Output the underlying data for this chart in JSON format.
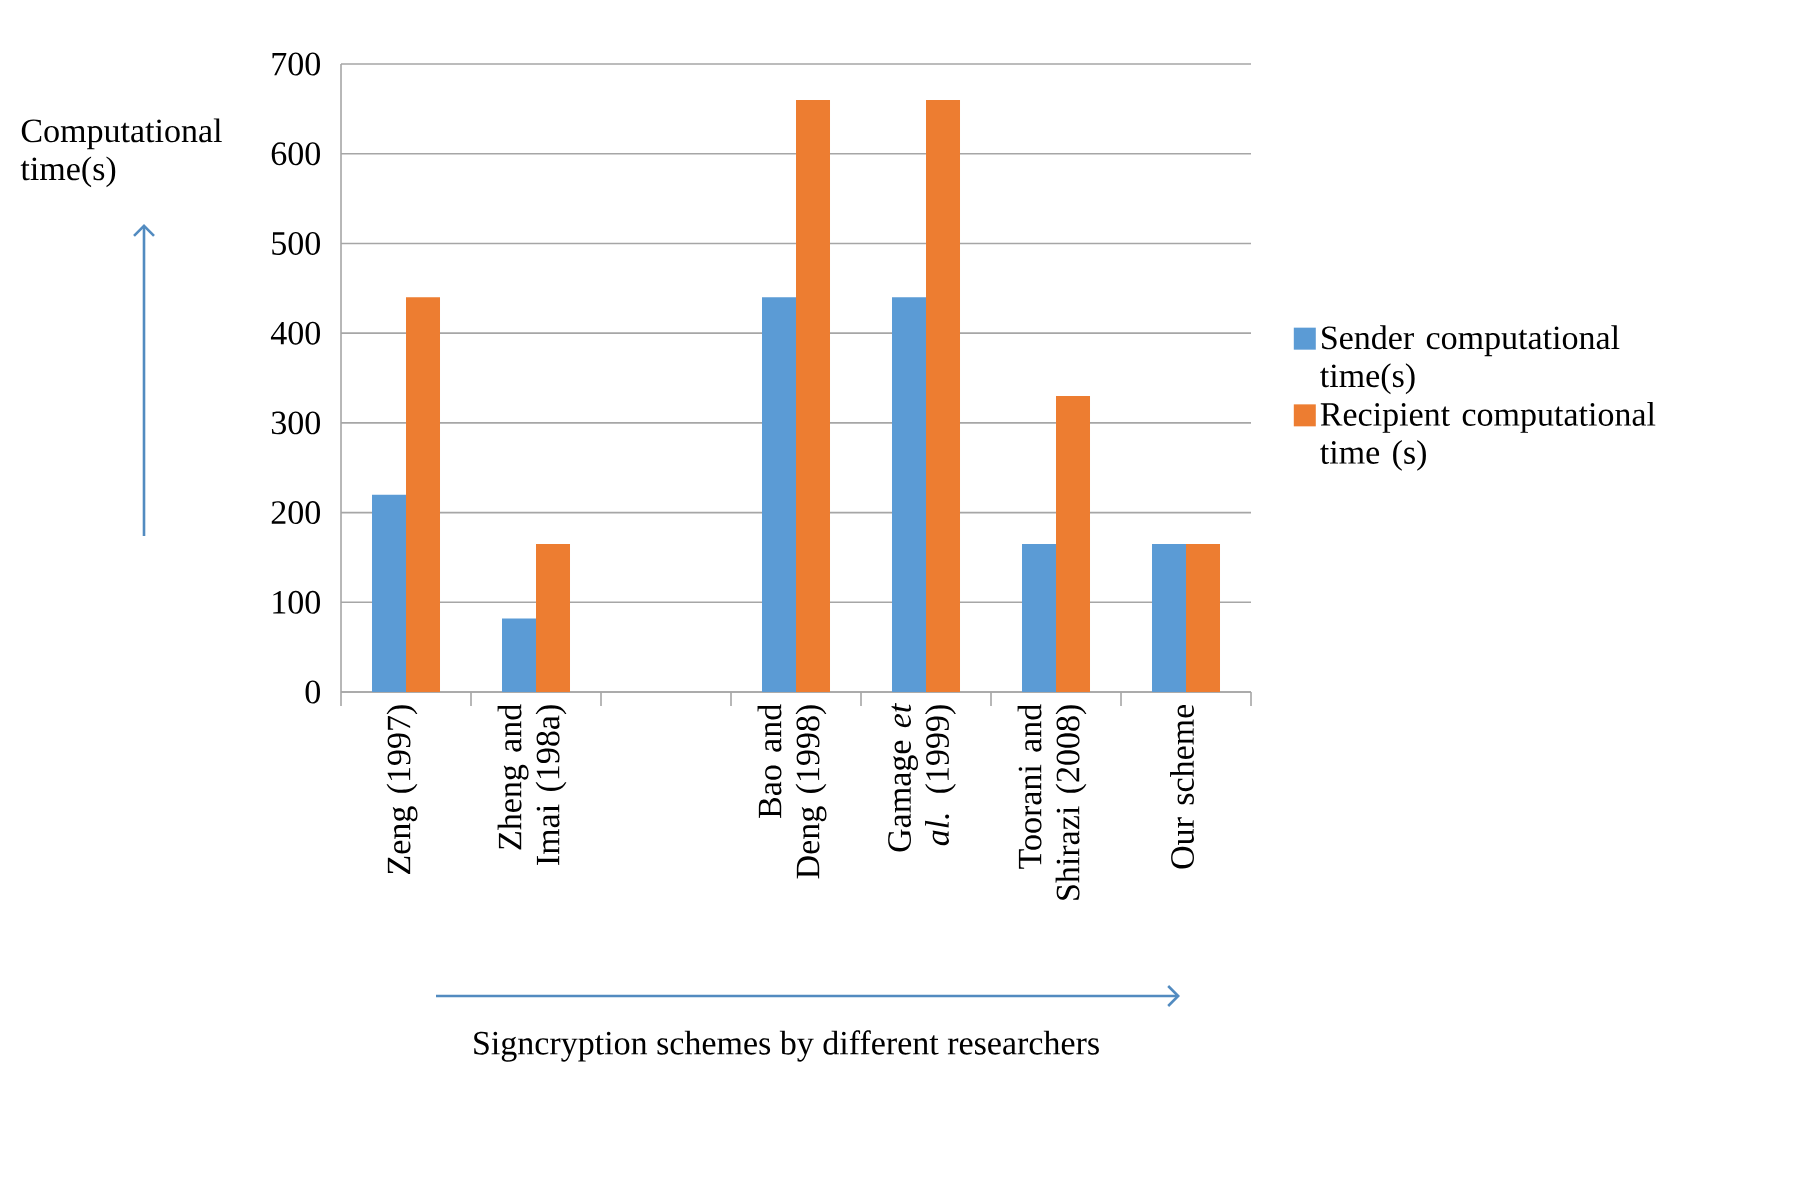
{
  "chart_data": {
    "type": "bar",
    "xlabel": "Signcryption schemes by different researchers",
    "ylabel": "Computational time(s)",
    "categories": [
      "Zeng (1997)",
      "Zheng and Imai (198a)",
      null,
      "Bao and Deng (1998)",
      "Gamage *et al.* (1999)",
      "Toorani and Shirazi (2008)",
      "Our scheme"
    ],
    "series": [
      {
        "name": "Sender computational time(s)",
        "color": "#5b9bd5",
        "values": [
          220,
          82,
          null,
          440,
          440,
          165,
          165
        ]
      },
      {
        "name": "Recipient computational time (s)",
        "color": "#ed7d31",
        "values": [
          440,
          165,
          null,
          660,
          660,
          330,
          165
        ]
      }
    ],
    "ylim": [
      0,
      700
    ],
    "yticks": [
      0,
      100,
      200,
      300,
      400,
      500,
      600,
      700
    ],
    "grid": "y",
    "legend": "right"
  }
}
